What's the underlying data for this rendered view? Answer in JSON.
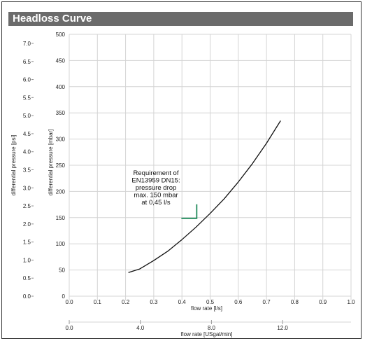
{
  "title": "Headloss Curve",
  "colors": {
    "title_bar": "#6b6b6b",
    "grid": "#d4d4d4",
    "curve": "#111111",
    "marker": "#1f8a5a"
  },
  "chart_data": {
    "type": "line",
    "title": "Headloss Curve",
    "xlabel": "flow rate [l/s]",
    "ylabel": "differential pressure [mbar]",
    "secondary_xlabel": "flow rate [USgal/min]",
    "secondary_ylabel": "differential pressure [psi]",
    "xlim": [
      0,
      1.0
    ],
    "ylim": [
      0,
      500
    ],
    "x_ticks": [
      "0.0",
      "0.1",
      "0.2",
      "0.3",
      "0.4",
      "0.5",
      "0.6",
      "0.7",
      "0.8",
      "0.9",
      "1.0"
    ],
    "y_ticks": [
      "0",
      "50",
      "100",
      "150",
      "200",
      "250",
      "300",
      "350",
      "400",
      "450",
      "500"
    ],
    "psi_ticks": [
      "0.0",
      "0.5",
      "1.0",
      "1.5",
      "2.0",
      "2.5",
      "3.0",
      "3.5",
      "4.0",
      "4.5",
      "5.0",
      "5.5",
      "6.0",
      "6.5",
      "7.0"
    ],
    "usgal_ticks": [
      {
        "label": "0.0",
        "value": 0
      },
      {
        "label": "4.0",
        "value": 4
      },
      {
        "label": "8.0",
        "value": 8
      },
      {
        "label": "12.0",
        "value": 12
      }
    ],
    "grid": true,
    "series": [
      {
        "x": [
          0.21,
          0.25,
          0.3,
          0.35,
          0.4,
          0.45,
          0.5,
          0.55,
          0.6,
          0.65,
          0.7,
          0.75
        ],
        "y": [
          45,
          52,
          68,
          86,
          108,
          132,
          158,
          186,
          218,
          253,
          292,
          335
        ]
      }
    ],
    "annotation": {
      "lines": [
        "Requirement of",
        "EN13959 DN15:",
        "pressure drop",
        "max. 150 mbar",
        "at 0,45 l/s"
      ],
      "marker_point": {
        "x": 0.45,
        "y": 150
      }
    }
  }
}
